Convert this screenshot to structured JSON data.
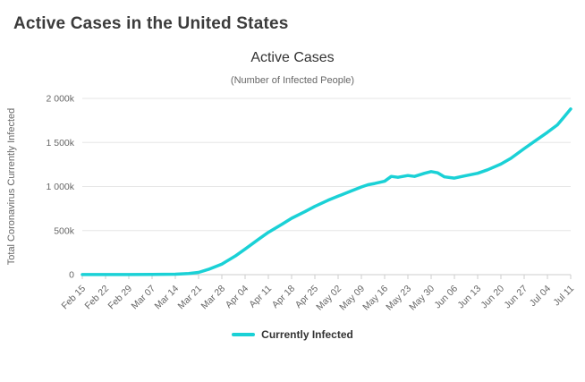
{
  "page": {
    "title": "Active Cases in the United States"
  },
  "chart": {
    "title": "Active Cases",
    "subtitle": "(Number of Infected People)",
    "y_axis_title": "Total Coronavirus Currently Infected",
    "legend": {
      "label": "Currently Infected"
    },
    "colors": {
      "line": "#1ad1d6",
      "grid": "#e6e6e6",
      "axis": "#cccccc",
      "tick_text": "#666666"
    }
  },
  "chart_data": {
    "type": "line",
    "title": "Active Cases",
    "subtitle": "(Number of Infected People)",
    "xlabel": "",
    "ylabel": "Total Coronavirus Currently Infected",
    "unit": "thousands of people (k)",
    "ylim": [
      0,
      2000
    ],
    "grid": "horizontal",
    "legend_position": "bottom",
    "y_ticks": [
      {
        "value": 0,
        "label": "0"
      },
      {
        "value": 500,
        "label": "500k"
      },
      {
        "value": 1000,
        "label": "1 000k"
      },
      {
        "value": 1500,
        "label": "1 500k"
      },
      {
        "value": 2000,
        "label": "2 000k"
      }
    ],
    "x_tick_days": [
      0,
      7,
      14,
      21,
      28,
      35,
      42,
      49,
      56,
      63,
      70,
      77,
      84,
      91,
      98,
      105,
      112,
      119,
      126,
      133,
      140,
      147
    ],
    "x_tick_labels": [
      "Feb 15",
      "Feb 22",
      "Feb 29",
      "Mar 07",
      "Mar 14",
      "Mar 21",
      "Mar 28",
      "Apr 04",
      "Apr 11",
      "Apr 18",
      "Apr 25",
      "May 02",
      "May 09",
      "May 16",
      "May 23",
      "May 30",
      "Jun 06",
      "Jun 13",
      "Jun 20",
      "Jun 27",
      "Jul 04",
      "Jul 11"
    ],
    "series": [
      {
        "name": "Currently Infected",
        "color": "#1ad1d6",
        "points_day_valuek": [
          [
            0,
            1
          ],
          [
            7,
            1
          ],
          [
            14,
            1
          ],
          [
            21,
            2
          ],
          [
            28,
            5
          ],
          [
            32,
            12
          ],
          [
            35,
            25
          ],
          [
            38,
            60
          ],
          [
            42,
            120
          ],
          [
            46,
            210
          ],
          [
            49,
            290
          ],
          [
            53,
            400
          ],
          [
            56,
            480
          ],
          [
            60,
            570
          ],
          [
            63,
            640
          ],
          [
            67,
            715
          ],
          [
            70,
            775
          ],
          [
            74,
            845
          ],
          [
            77,
            890
          ],
          [
            81,
            950
          ],
          [
            84,
            995
          ],
          [
            86,
            1020
          ],
          [
            88,
            1035
          ],
          [
            91,
            1060
          ],
          [
            93,
            1115
          ],
          [
            95,
            1105
          ],
          [
            98,
            1125
          ],
          [
            100,
            1115
          ],
          [
            103,
            1150
          ],
          [
            105,
            1170
          ],
          [
            107,
            1155
          ],
          [
            109,
            1110
          ],
          [
            112,
            1095
          ],
          [
            115,
            1120
          ],
          [
            119,
            1150
          ],
          [
            122,
            1190
          ],
          [
            126,
            1255
          ],
          [
            129,
            1320
          ],
          [
            133,
            1430
          ],
          [
            136,
            1510
          ],
          [
            140,
            1615
          ],
          [
            143,
            1700
          ],
          [
            145,
            1790
          ],
          [
            147,
            1880
          ]
        ],
        "weekly_values_k": {
          "Feb 15": 1,
          "Feb 22": 1,
          "Feb 29": 1,
          "Mar 07": 2,
          "Mar 14": 5,
          "Mar 21": 25,
          "Mar 28": 120,
          "Apr 04": 290,
          "Apr 11": 480,
          "Apr 18": 640,
          "Apr 25": 775,
          "May 02": 890,
          "May 09": 995,
          "May 16": 1060,
          "May 23": 1125,
          "May 30": 1170,
          "Jun 06": 1095,
          "Jun 13": 1150,
          "Jun 20": 1255,
          "Jun 27": 1430,
          "Jul 04": 1615,
          "Jul 11": 1880
        }
      }
    ]
  }
}
